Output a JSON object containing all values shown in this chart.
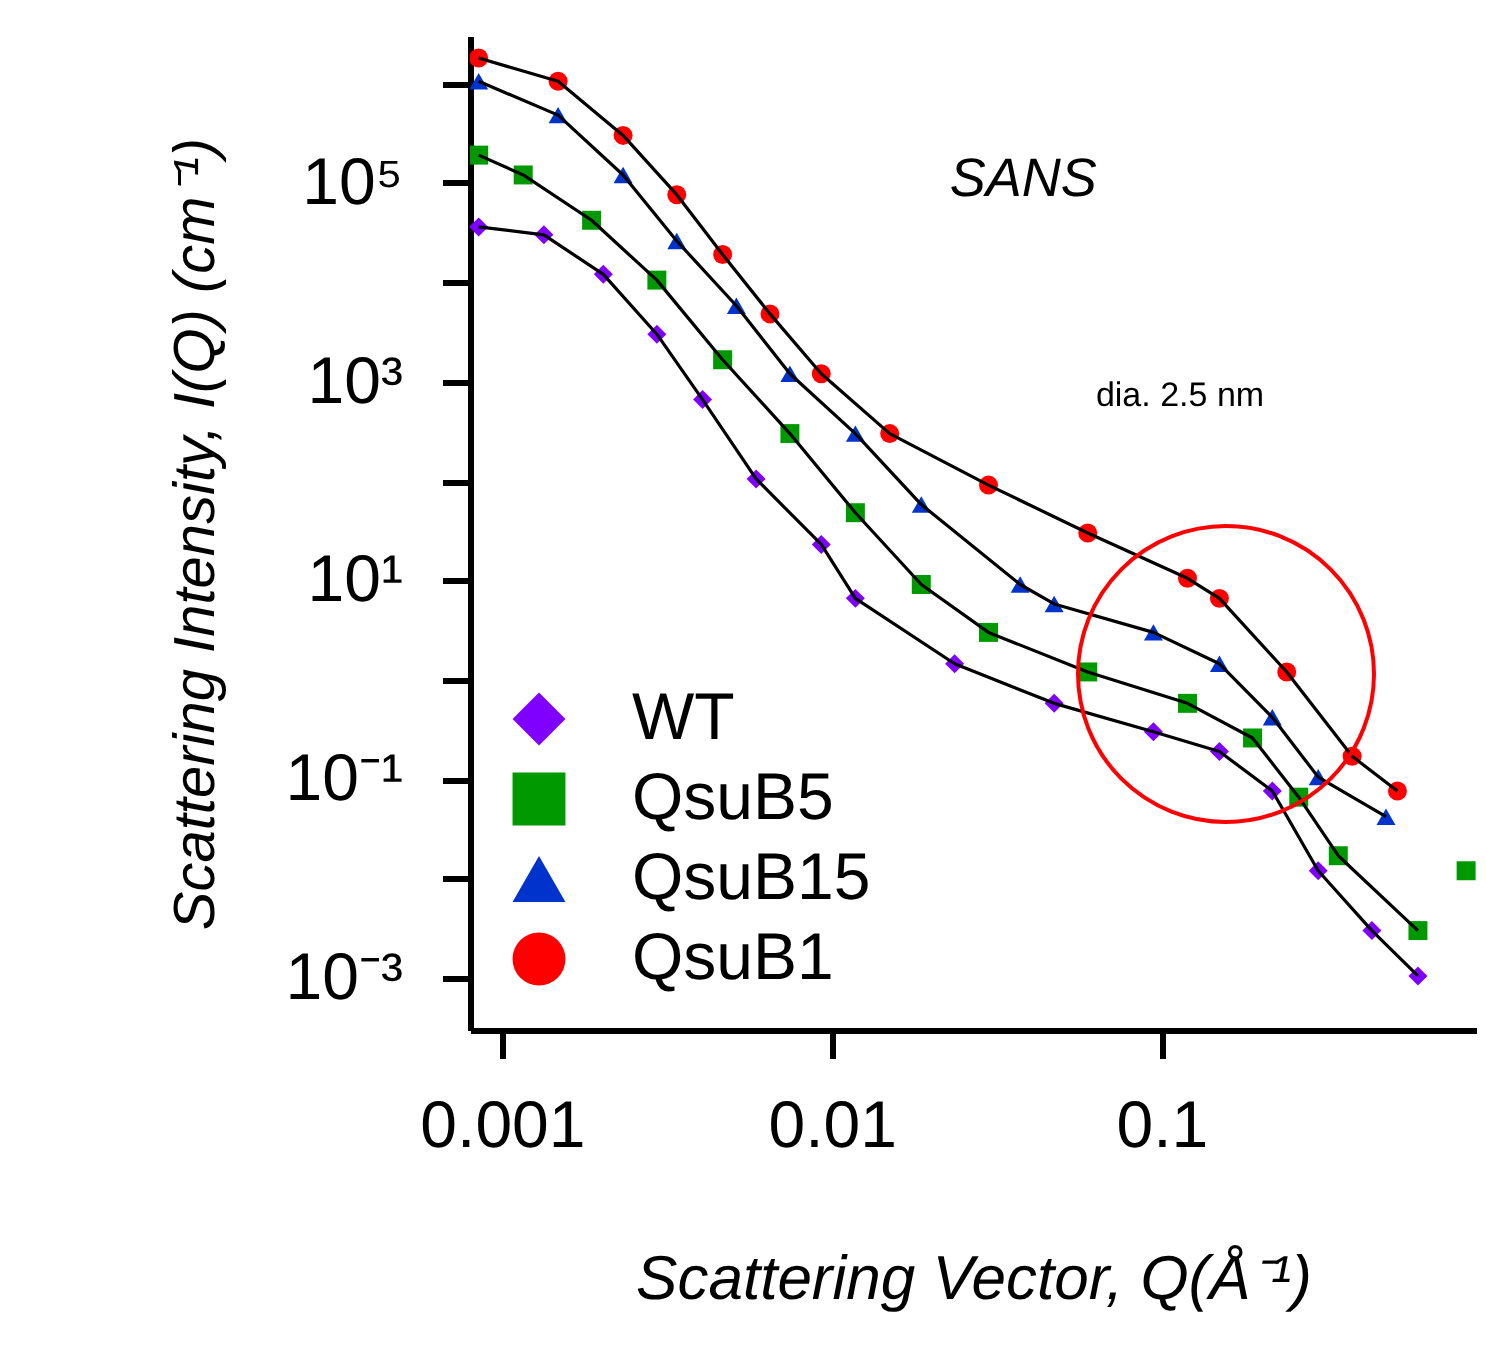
{
  "chart_data": {
    "type": "scatter",
    "title": "SANS",
    "xlabel": "Scattering Vector, Q(Å⁻¹)",
    "ylabel": "Scattering Intensity, I(Q) (cm⁻¹)",
    "log": "xy",
    "xlim": [
      0.0008,
      0.9
    ],
    "xticks": [
      0.001,
      0.01,
      0.1
    ],
    "ylim": [
      0.0003,
      3000000
    ],
    "yticks": [
      {
        "value": 0.001,
        "label": "10⁻³"
      },
      {
        "value": 0.01,
        "label": null
      },
      {
        "value": 0.1,
        "label": "10⁻¹"
      },
      {
        "value": 1,
        "label": null
      },
      {
        "value": 10,
        "label": "10¹"
      },
      {
        "value": 100,
        "label": null
      },
      {
        "value": 1000,
        "label": "10³"
      },
      {
        "value": 10000,
        "label": null
      },
      {
        "value": 100000,
        "label": "10⁵"
      },
      {
        "value": 1000000,
        "label": null
      }
    ],
    "grid": false,
    "legend": "bottom left",
    "annotations": [
      "dia. 2.5 nm"
    ],
    "series": [
      {
        "name": "WT",
        "color": "#7f00ff",
        "marker": "diamond",
        "x": [
          0.00085,
          0.00134,
          0.00203,
          0.00295,
          0.00406,
          0.0059,
          0.0093,
          0.0118,
          0.0236,
          0.0473,
          0.0946,
          0.15,
          0.217,
          0.299,
          0.435,
          0.6
        ],
        "values": [
          36000,
          30000,
          12000,
          3000,
          660,
          105,
          23,
          6.6,
          1.45,
          0.58,
          0.3,
          0.19,
          0.076,
          0.012,
          0.003,
          0.00105
        ]
      },
      {
        "name": "QsuB5",
        "color": "#009900",
        "marker": "square",
        "x": [
          0.00085,
          0.00116,
          0.00187,
          0.00295,
          0.00467,
          0.00747,
          0.0118,
          0.0187,
          0.0299,
          0.0598,
          0.12,
          0.189,
          0.261,
          0.344,
          0.6,
          0.84
        ],
        "values": [
          190000,
          120000,
          42000,
          10500,
          1660,
          300,
          48,
          9.1,
          3.0,
          1.2,
          0.58,
          0.26,
          0.066,
          0.017,
          0.003,
          0.012
        ]
      },
      {
        "name": "QsuB15",
        "color": "#0033cc",
        "marker": "triangle",
        "x": [
          0.00085,
          0.00148,
          0.00233,
          0.00339,
          0.00514,
          0.00747,
          0.0118,
          0.0187,
          0.0373,
          0.0473,
          0.0946,
          0.15,
          0.217,
          0.299,
          0.48
        ],
        "values": [
          1050000,
          480000,
          120000,
          26000,
          5800,
          1200,
          300,
          58,
          9.1,
          5.8,
          3.0,
          1.45,
          0.42,
          0.105,
          0.042
        ]
      },
      {
        "name": "QsuB1",
        "color": "#ff0000",
        "marker": "circle",
        "x": [
          0.00085,
          0.00148,
          0.00233,
          0.00339,
          0.00467,
          0.0065,
          0.0093,
          0.015,
          0.0299,
          0.0598,
          0.12,
          0.15,
          0.24,
          0.379,
          0.52
        ],
        "values": [
          1800000,
          1050000,
          300000,
          76000,
          19000,
          4800,
          1200,
          300,
          91,
          30,
          10.5,
          6.6,
          1.2,
          0.17,
          0.076
        ]
      },
      {
        "type": "line",
        "color": "#000000",
        "x": [
          0.00085,
          0.00134,
          0.00203,
          0.00295,
          0.00406,
          0.0059,
          0.0093,
          0.0118,
          0.0236,
          0.0473,
          0.0946,
          0.15,
          0.217,
          0.299,
          0.435,
          0.6
        ],
        "values": [
          36000,
          30000,
          12000,
          3000,
          660,
          105,
          23,
          6.6,
          1.45,
          0.58,
          0.3,
          0.19,
          0.076,
          0.012,
          0.003,
          0.00105
        ]
      },
      {
        "type": "line",
        "color": "#000000",
        "x": [
          0.00085,
          0.00116,
          0.00187,
          0.00295,
          0.00467,
          0.00747,
          0.0118,
          0.0187,
          0.0299,
          0.0598,
          0.12,
          0.189,
          0.261,
          0.344,
          0.6
        ],
        "values": [
          190000,
          120000,
          42000,
          10500,
          1660,
          300,
          48,
          9.1,
          3.0,
          1.2,
          0.58,
          0.26,
          0.066,
          0.017,
          0.003
        ]
      },
      {
        "type": "line",
        "color": "#000000",
        "x": [
          0.00085,
          0.00148,
          0.00233,
          0.00339,
          0.00514,
          0.00747,
          0.0118,
          0.0187,
          0.0373,
          0.0473,
          0.0946,
          0.15,
          0.217,
          0.299,
          0.48
        ],
        "values": [
          1050000,
          480000,
          120000,
          26000,
          5800,
          1200,
          300,
          58,
          9.1,
          5.8,
          3.0,
          1.45,
          0.42,
          0.105,
          0.042
        ]
      },
      {
        "type": "line",
        "color": "#000000",
        "x": [
          0.00085,
          0.00148,
          0.00233,
          0.00339,
          0.00467,
          0.0065,
          0.0093,
          0.015,
          0.0299,
          0.0598,
          0.12,
          0.15,
          0.24,
          0.379,
          0.52
        ],
        "values": [
          1800000,
          1050000,
          300000,
          76000,
          19000,
          4800,
          1200,
          300,
          91,
          30,
          10.5,
          6.6,
          1.2,
          0.17,
          0.076
        ]
      }
    ]
  }
}
